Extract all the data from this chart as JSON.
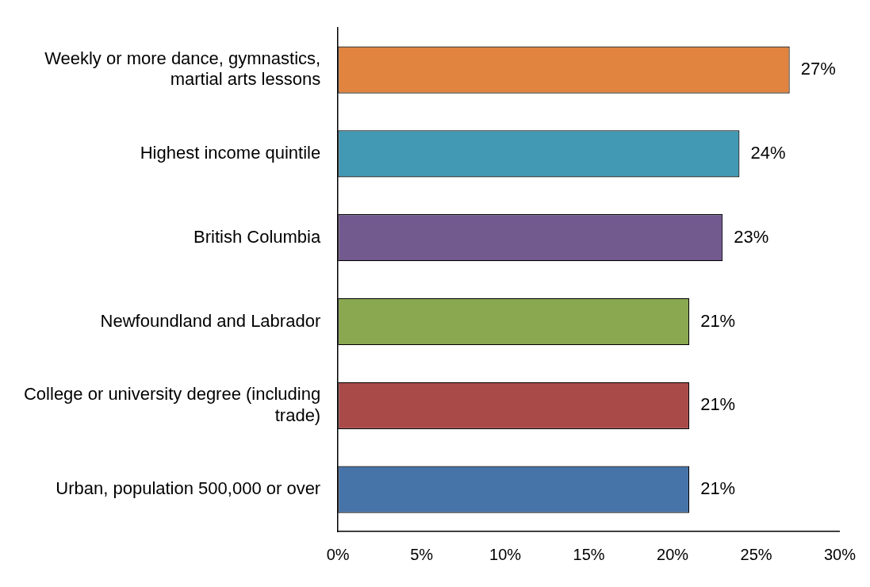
{
  "chart_data": {
    "type": "bar",
    "orientation": "horizontal",
    "categories": [
      "Weekly or more dance, gymnastics, martial arts lessons",
      "Highest income quintile",
      "British Columbia",
      "Newfoundland and Labrador",
      "College or university degree (including trade)",
      "Urban, population 500,000 or over"
    ],
    "values": [
      27,
      24,
      23,
      21,
      21,
      21
    ],
    "value_labels": [
      "27%",
      "24%",
      "23%",
      "21%",
      "21%",
      "21%"
    ],
    "colors": [
      "#e0843f",
      "#4299b3",
      "#725a8f",
      "#8aa84f",
      "#a94a49",
      "#4673a8"
    ],
    "xlim": [
      0,
      30
    ],
    "xticks": [
      {
        "value": 0,
        "label": "0%"
      },
      {
        "value": 5,
        "label": "5%"
      },
      {
        "value": 10,
        "label": "10%"
      },
      {
        "value": 15,
        "label": "15%"
      },
      {
        "value": 20,
        "label": "20%"
      },
      {
        "value": 25,
        "label": "25%"
      },
      {
        "value": 30,
        "label": "30%"
      }
    ],
    "grid": false,
    "legend": false
  }
}
